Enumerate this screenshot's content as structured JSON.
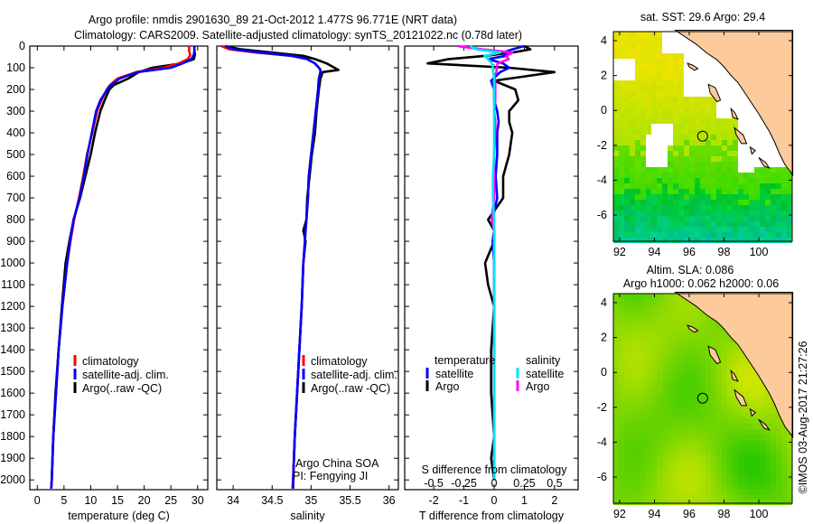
{
  "title": {
    "line1": "Argo profile: nmdis 2901630_89 21-Oct-2012 1.477S 96.771E (NRT data)",
    "line2": "Climatology: CARS2009. Satellite-adjusted climatology: synTS_20121022.nc (0.78d later)"
  },
  "colors": {
    "climatology": "#ff0000",
    "satellite": "#0000ff",
    "argo": "#000000",
    "sal_satellite": "#00e5ee",
    "sal_argo": "#ff00ff",
    "land": "#fdcb9b"
  },
  "chart_data": [
    {
      "type": "line",
      "name": "temperature-profile",
      "xlabel": "temperature (deg C)",
      "ylabel": "depth",
      "xlim": [
        -1.4,
        31.9
      ],
      "ylim": [
        2045,
        0
      ],
      "xticks": [
        0,
        5,
        10,
        15,
        20,
        25,
        30
      ],
      "yticks": [
        0,
        100,
        200,
        300,
        400,
        500,
        600,
        700,
        800,
        900,
        1000,
        1100,
        1200,
        1300,
        1400,
        1500,
        1600,
        1700,
        1800,
        1900,
        2000
      ],
      "legend": [
        "climatology",
        "satellite-adj. clim.",
        "Argo(..raw -QC)"
      ],
      "depth": [
        0,
        20,
        40,
        60,
        80,
        100,
        120,
        150,
        180,
        200,
        250,
        300,
        400,
        500,
        600,
        700,
        800,
        900,
        1000,
        1200,
        1400,
        1600,
        1800,
        2000,
        2040
      ],
      "series": [
        {
          "name": "climatology",
          "values": [
            28.4,
            28.4,
            28.6,
            28.2,
            26.5,
            23.5,
            18.5,
            15.0,
            13.6,
            13.0,
            12.0,
            11.2,
            10.3,
            9.3,
            8.6,
            7.8,
            6.9,
            6.2,
            5.6,
            4.7,
            4.0,
            3.5,
            3.0,
            2.7,
            2.6
          ]
        },
        {
          "name": "satellite-adj. clim.",
          "values": [
            29.4,
            29.4,
            29.3,
            28.8,
            27.2,
            25.0,
            18.8,
            15.4,
            13.8,
            13.1,
            11.8,
            11.0,
            10.2,
            9.4,
            8.7,
            7.9,
            6.8,
            6.1,
            5.6,
            4.7,
            4.0,
            3.5,
            3.0,
            2.7,
            2.6
          ]
        },
        {
          "name": "Argo(..raw -QC)",
          "values": [
            29.4,
            29.4,
            29.5,
            29.3,
            27.0,
            21.5,
            19.0,
            17.0,
            14.3,
            13.5,
            12.6,
            11.8,
            10.8,
            10.0,
            9.0,
            8.0,
            6.8,
            6.0,
            5.3,
            4.6,
            4.0,
            3.4,
            3.0,
            2.7,
            2.6
          ]
        }
      ]
    },
    {
      "type": "line",
      "name": "salinity-profile",
      "xlabel": "salinity",
      "xlim": [
        33.79,
        36.12
      ],
      "ylim": [
        2045,
        0
      ],
      "xticks": [
        34,
        34.5,
        35,
        35.5,
        36
      ],
      "legend": [
        "climatology",
        "satellite-adj. clim.",
        "Argo(..raw -QC)"
      ],
      "annotation": [
        "Argo China SOA",
        "PI: Fengying JI"
      ],
      "depth": [
        0,
        15,
        30,
        45,
        60,
        80,
        100,
        110,
        120,
        150,
        200,
        300,
        400,
        500,
        600,
        700,
        800,
        850,
        900,
        1000,
        1200,
        1400,
        1600,
        1800,
        2000,
        2040
      ],
      "series": [
        {
          "name": "climatology",
          "values": [
            33.85,
            33.95,
            34.3,
            34.75,
            34.95,
            35.05,
            35.1,
            35.12,
            35.12,
            35.1,
            35.09,
            35.06,
            35.03,
            35.0,
            34.97,
            34.96,
            34.94,
            34.93,
            34.92,
            34.9,
            34.88,
            34.85,
            34.82,
            34.79,
            34.77,
            34.76
          ]
        },
        {
          "name": "satellite-adj. clim.",
          "values": [
            33.9,
            34.0,
            34.35,
            34.75,
            34.95,
            35.05,
            35.1,
            35.12,
            35.12,
            35.1,
            35.09,
            35.06,
            35.03,
            35.0,
            34.97,
            34.96,
            34.94,
            34.93,
            34.92,
            34.9,
            34.88,
            34.85,
            34.82,
            34.79,
            34.77,
            34.77
          ]
        },
        {
          "name": "Argo(..raw -QC)",
          "values": [
            33.9,
            34.1,
            34.5,
            34.9,
            35.05,
            35.2,
            35.3,
            35.35,
            35.15,
            35.12,
            35.1,
            35.07,
            35.05,
            35.01,
            34.98,
            34.95,
            34.94,
            34.9,
            34.93,
            34.9,
            34.88,
            34.85,
            34.82,
            34.79,
            34.77,
            34.77
          ]
        }
      ]
    },
    {
      "type": "line",
      "name": "difference-profile",
      "xlabel": "T difference from climatology",
      "x2label": "S difference from climatology",
      "xlim": [
        -2.96,
        2.78
      ],
      "ylim": [
        2045,
        0
      ],
      "xticks": [
        -2,
        -1,
        0,
        1,
        2
      ],
      "x2ticks": [
        "-0.5",
        "-0.25",
        "0",
        "0.25",
        "0.5"
      ],
      "legend": {
        "temperature_header": "temperature",
        "salinity_header": "salinity",
        "satellite": "satellite",
        "argo": "Argo"
      },
      "depth": [
        0,
        15,
        30,
        45,
        60,
        80,
        100,
        120,
        140,
        160,
        200,
        250,
        300,
        350,
        400,
        500,
        600,
        700,
        800,
        850,
        900,
        1000,
        1100,
        1200,
        1400,
        1600,
        1800,
        1900,
        2000
      ],
      "series": [
        {
          "name": "temperature satellite",
          "values": [
            1.0,
            0.6,
            0.3,
            0.4,
            -0.2,
            0.3,
            0.5,
            0.2,
            0.05,
            -0.1,
            0.0,
            0.0,
            0.1,
            0.15,
            0.1,
            0.1,
            0.05,
            0.1,
            -0.05,
            0.0,
            -0.05,
            0.0,
            0.0,
            0.0,
            0.0,
            0.0,
            0.0,
            0.0,
            0.0
          ]
        },
        {
          "name": "temperature Argo",
          "values": [
            1.0,
            1.2,
            0.6,
            -0.3,
            -1.5,
            -2.2,
            0.5,
            2.0,
            1.0,
            0.0,
            0.7,
            0.8,
            0.5,
            0.5,
            0.6,
            0.5,
            0.3,
            0.3,
            -0.2,
            0.0,
            0.0,
            -0.3,
            -0.2,
            0.0,
            -0.1,
            -0.1,
            0.0,
            -0.1,
            0.0
          ]
        },
        {
          "name": "salinity satellite",
          "values": [
            -0.2,
            -0.15,
            0.05,
            -0.08,
            -0.05,
            -0.02,
            -0.01,
            -0.01,
            0.0,
            0.0,
            0.0,
            0.0,
            0.0,
            0.0,
            0.0,
            0.0,
            -0.01,
            -0.01,
            0.0,
            0.0,
            0.0,
            0.0,
            0.0,
            0.0,
            0.0,
            0.0,
            0.0,
            0.0,
            0.0
          ]
        },
        {
          "name": "salinity Argo",
          "values": [
            -0.3,
            -0.1,
            0.15,
            0.1,
            0.12,
            0.03,
            0.02,
            0.02,
            0.0,
            0.01,
            0.01,
            0.01,
            0.0,
            0.01,
            0.01,
            0.0,
            0.0,
            0.0,
            -0.02,
            0.0,
            0.0,
            0.0,
            0.0,
            0.0,
            0.0,
            0.0,
            0.0,
            0.0,
            0.0
          ]
        }
      ]
    },
    {
      "type": "heatmap",
      "name": "sst-map",
      "title": "sat. SST: 29.6 Argo: 29.4",
      "xlim": [
        91.64,
        101.92
      ],
      "ylim": [
        -7.5,
        4.52
      ],
      "xticks": [
        92,
        94,
        96,
        98,
        100
      ],
      "yticks": [
        4,
        2,
        0,
        -2,
        -4,
        -6
      ],
      "float_position": {
        "lon": 96.771,
        "lat": -1.477
      }
    },
    {
      "type": "heatmap",
      "name": "sla-map",
      "title": "Altim. SLA: 0.086",
      "subtitle": "Argo h1000: 0.062 h2000: 0.06",
      "xlim": [
        91.64,
        101.92
      ],
      "ylim": [
        -7.5,
        4.52
      ],
      "xticks": [
        92,
        94,
        96,
        98,
        100
      ],
      "yticks": [
        4,
        2,
        0,
        -2,
        -4,
        -6
      ],
      "float_position": {
        "lon": 96.771,
        "lat": -1.477
      }
    }
  ],
  "attribution": "©IMOS 03-Aug-2017 21:27:26"
}
